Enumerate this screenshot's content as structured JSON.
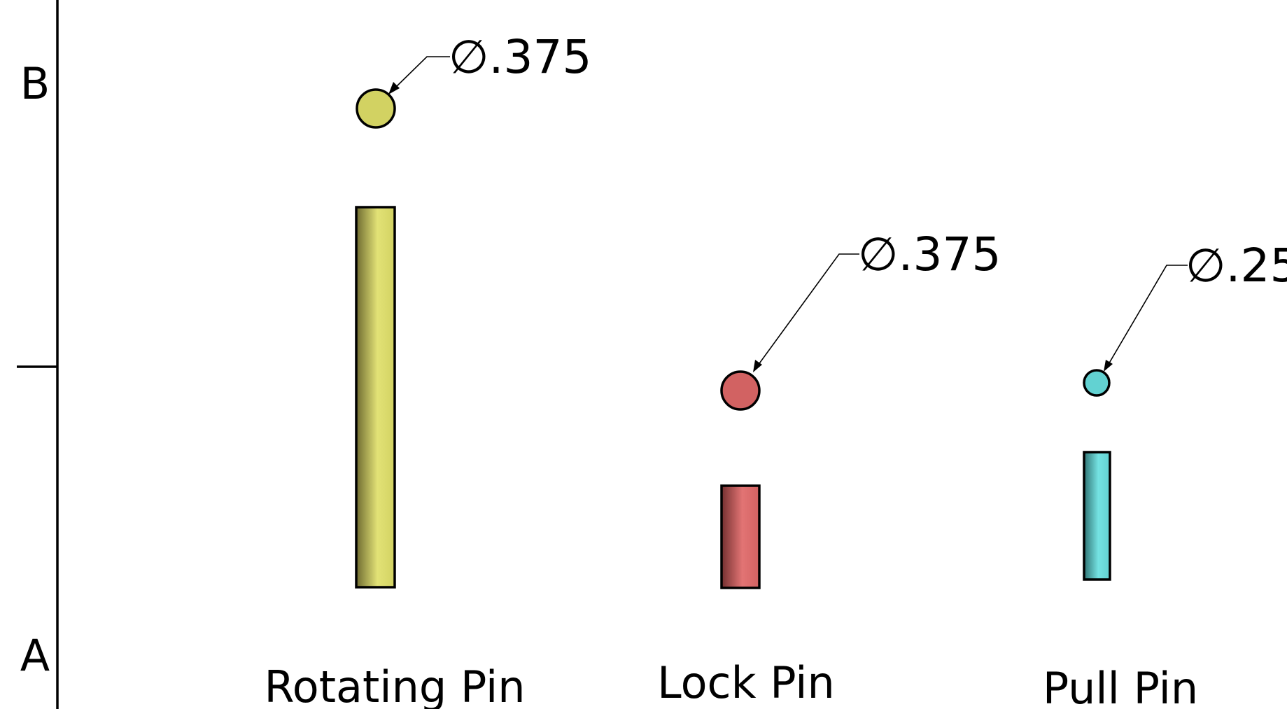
{
  "zones": {
    "top_label": "B",
    "bottom_label": "A"
  },
  "pins": [
    {
      "label": "Rotating Pin",
      "diameter_label": "∅.375",
      "diameter_in": 0.375,
      "color": "#d2d262",
      "color_light": "#e2e276",
      "color_dark": "#6e6a30"
    },
    {
      "label": "Lock Pin",
      "diameter_label": "∅.375",
      "diameter_in": 0.375,
      "color": "#d26262",
      "color_light": "#e27474",
      "color_dark": "#743030"
    },
    {
      "label": "Pull Pin",
      "diameter_label": "∅.25",
      "diameter_in": 0.25,
      "color": "#62d2d2",
      "color_light": "#74e2e2",
      "color_dark": "#307474"
    }
  ],
  "colors": {
    "line": "#000000",
    "background": "#ffffff"
  }
}
